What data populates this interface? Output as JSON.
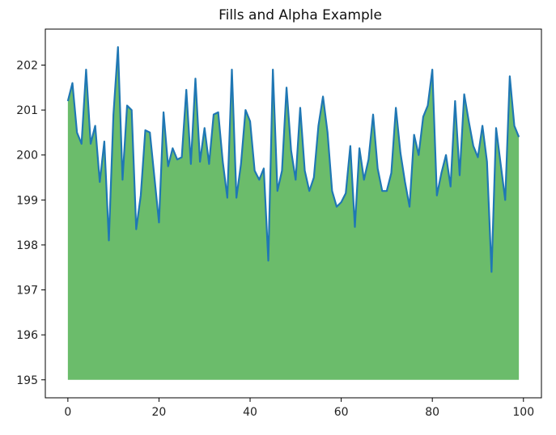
{
  "chart_data": {
    "type": "area",
    "title": "Fills and Alpha Example",
    "xlabel": "",
    "ylabel": "",
    "xlim": [
      -4.95,
      103.95
    ],
    "ylim": [
      194.6,
      202.8
    ],
    "fill_baseline": 195,
    "xticks": [
      0,
      20,
      40,
      60,
      80,
      100
    ],
    "yticks": [
      195,
      196,
      197,
      198,
      199,
      200,
      201,
      202
    ],
    "grid": false,
    "legend": "none",
    "series": [
      {
        "line_color": "#1f77b4",
        "fill_color": "#2ca02c",
        "fill_alpha": 0.7,
        "x": [
          0,
          1,
          2,
          3,
          4,
          5,
          6,
          7,
          8,
          9,
          10,
          11,
          12,
          13,
          14,
          15,
          16,
          17,
          18,
          19,
          20,
          21,
          22,
          23,
          24,
          25,
          26,
          27,
          28,
          29,
          30,
          31,
          32,
          33,
          34,
          35,
          36,
          37,
          38,
          39,
          40,
          41,
          42,
          43,
          44,
          45,
          46,
          47,
          48,
          49,
          50,
          51,
          52,
          53,
          54,
          55,
          56,
          57,
          58,
          59,
          60,
          61,
          62,
          63,
          64,
          65,
          66,
          67,
          68,
          69,
          70,
          71,
          72,
          73,
          74,
          75,
          76,
          77,
          78,
          79,
          80,
          81,
          82,
          83,
          84,
          85,
          86,
          87,
          88,
          89,
          90,
          91,
          92,
          93,
          94,
          95,
          96,
          97,
          98,
          99
        ],
        "y": [
          201.2,
          201.6,
          200.5,
          200.25,
          201.9,
          200.25,
          200.65,
          199.4,
          200.3,
          198.1,
          200.9,
          202.4,
          199.45,
          201.1,
          201.0,
          198.35,
          199.1,
          200.55,
          200.5,
          199.5,
          198.5,
          200.95,
          199.75,
          200.15,
          199.9,
          199.95,
          201.45,
          199.8,
          201.7,
          199.85,
          200.6,
          199.8,
          200.9,
          200.95,
          199.85,
          199.05,
          201.9,
          199.05,
          199.8,
          201.0,
          200.75,
          199.65,
          199.45,
          199.7,
          197.65,
          201.9,
          199.2,
          199.65,
          201.5,
          200.1,
          199.45,
          201.05,
          199.65,
          199.2,
          199.5,
          200.65,
          201.3,
          200.5,
          199.2,
          198.85,
          198.95,
          199.15,
          200.2,
          198.4,
          200.15,
          199.45,
          199.9,
          200.9,
          199.7,
          199.2,
          199.2,
          199.6,
          201.05,
          200.05,
          199.4,
          198.85,
          200.45,
          200.0,
          200.85,
          201.1,
          201.9,
          199.1,
          199.6,
          200.0,
          199.3,
          201.2,
          199.55,
          201.35,
          200.75,
          200.2,
          199.95,
          200.65,
          199.85,
          197.4,
          200.6,
          199.8,
          199.0,
          201.75,
          200.65,
          200.4
        ]
      }
    ]
  }
}
